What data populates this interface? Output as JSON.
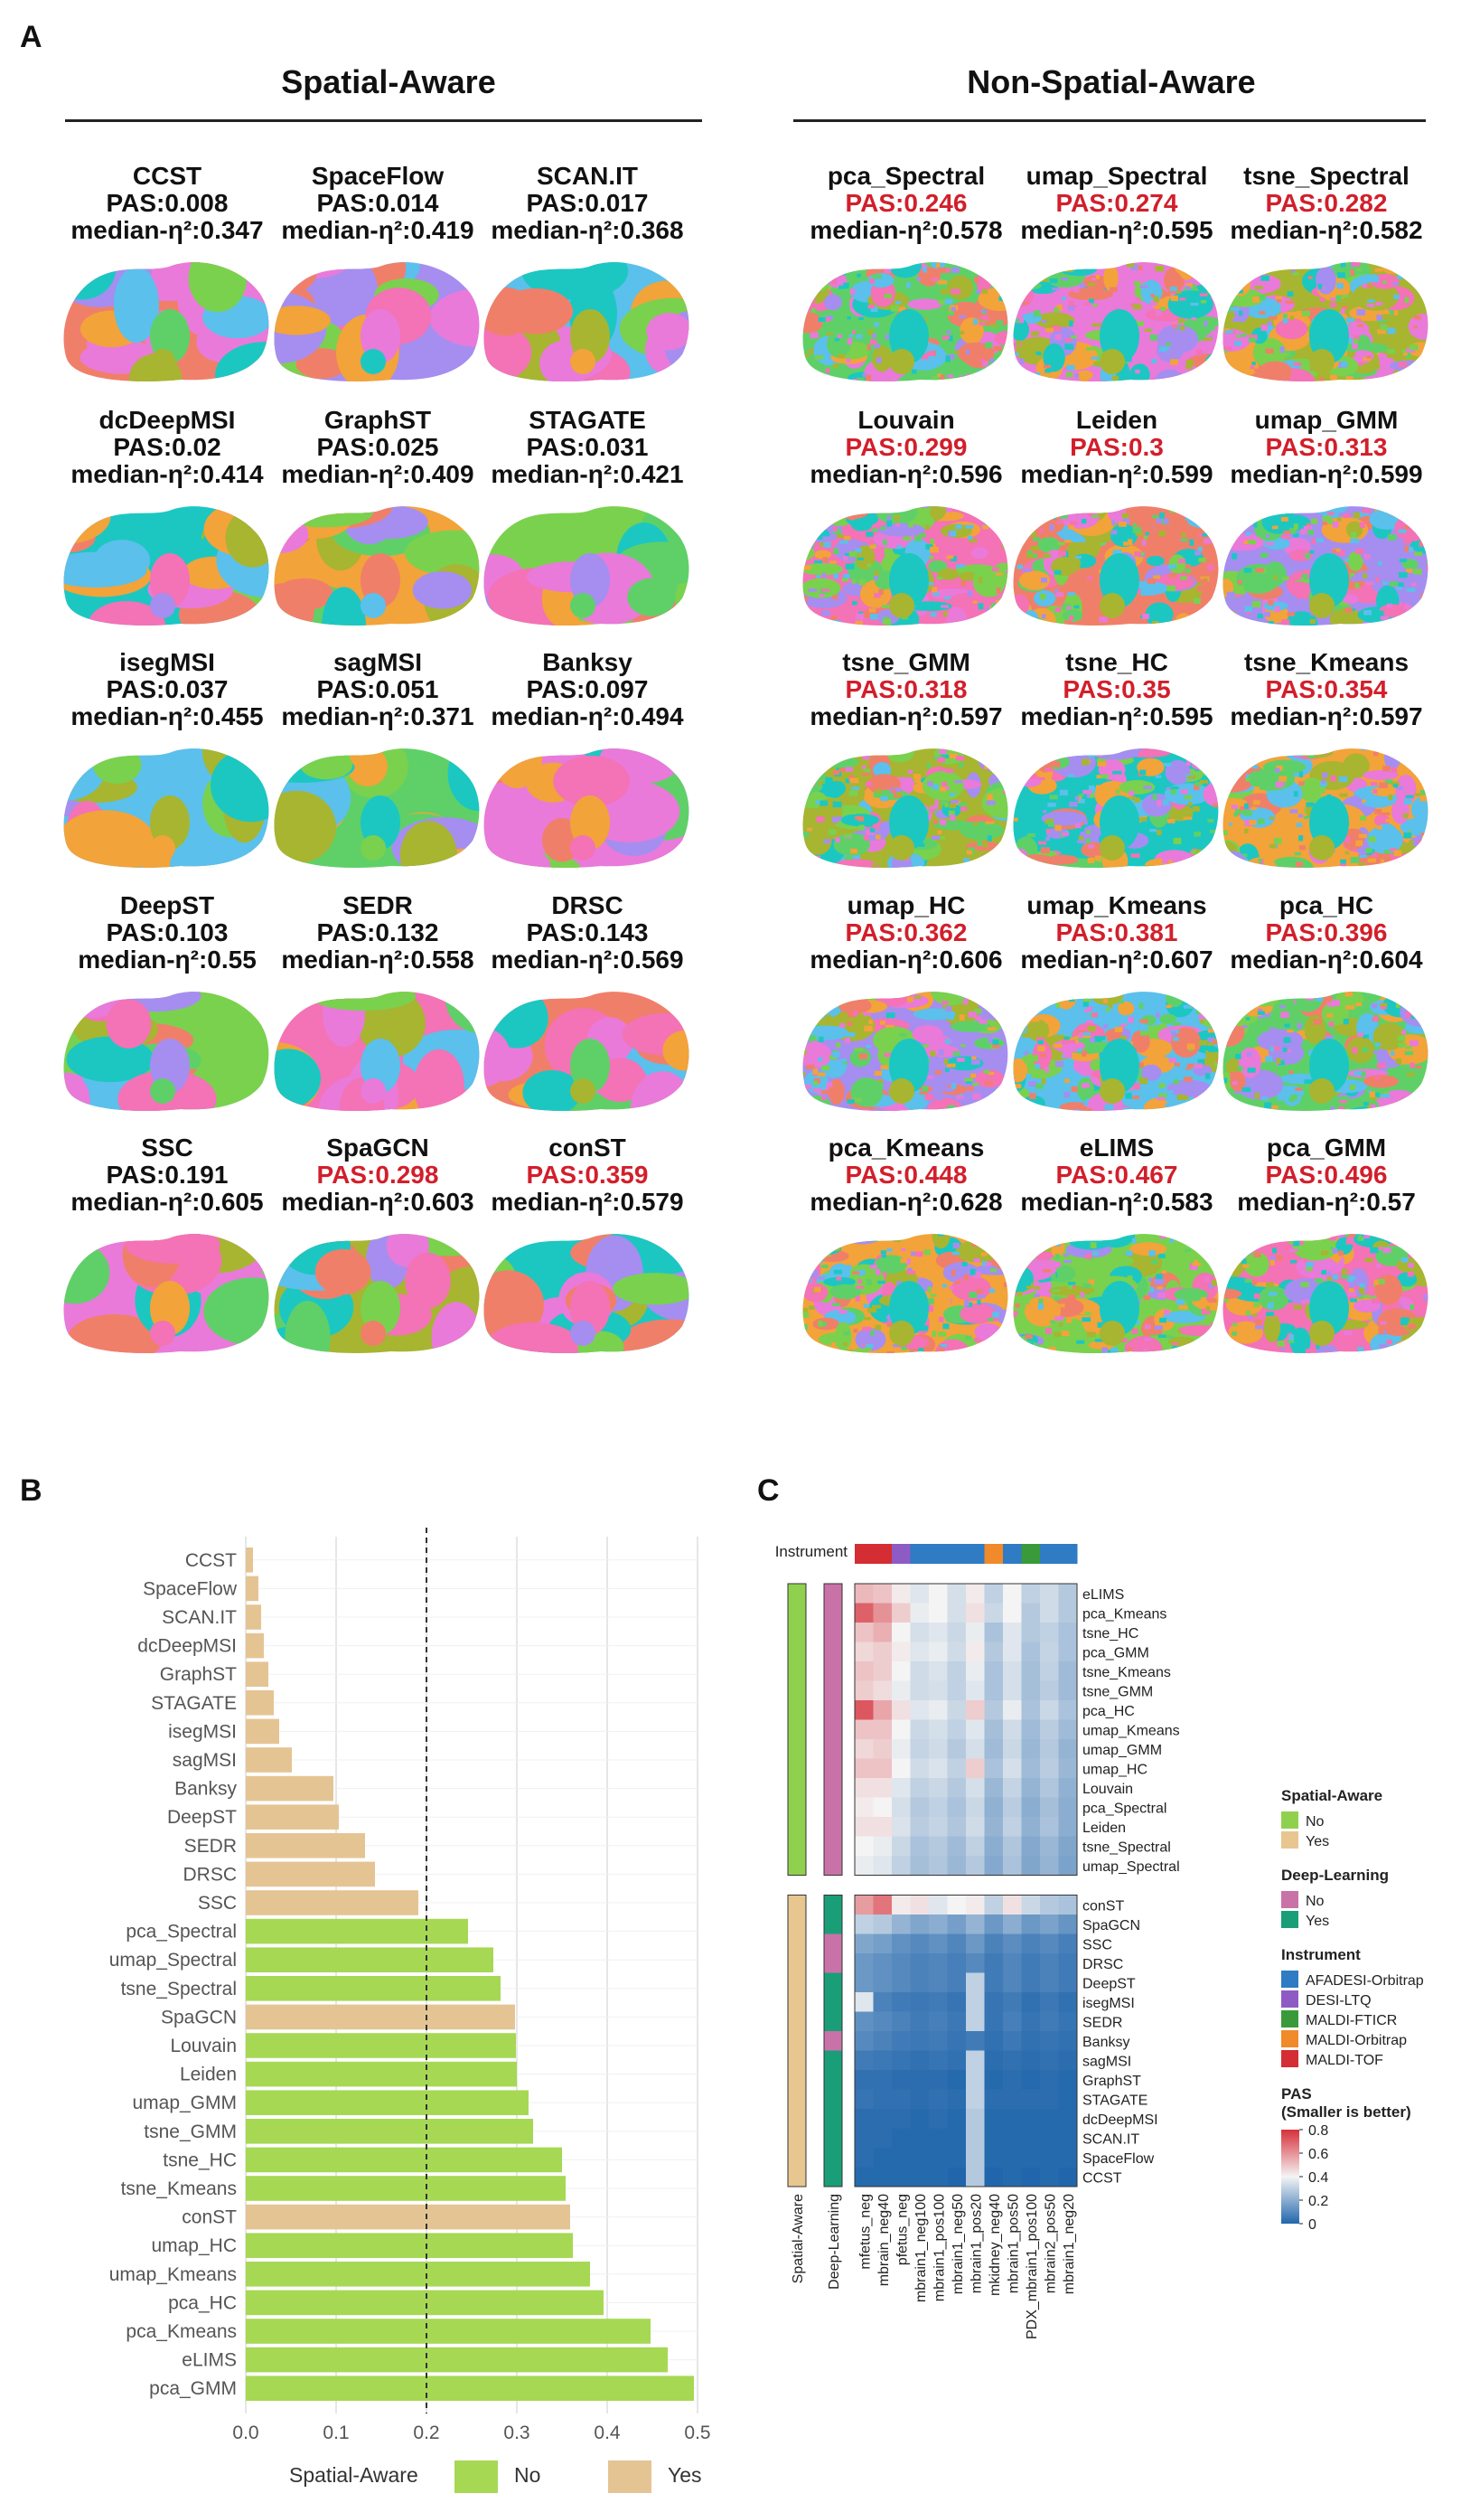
{
  "panels": {
    "a": "A",
    "b": "B",
    "c": "C"
  },
  "panel_a": {
    "groups": [
      {
        "title": "Spatial-Aware"
      },
      {
        "title": "Non-Spatial-Aware"
      }
    ],
    "pas_prefix": "PAS:",
    "eta_prefix": "median-η²:",
    "rows": [
      [
        {
          "name": "CCST",
          "pas": "0.008",
          "eta": "0.347",
          "highlight": false
        },
        {
          "name": "SpaceFlow",
          "pas": "0.014",
          "eta": "0.419",
          "highlight": false
        },
        {
          "name": "SCAN.IT",
          "pas": "0.017",
          "eta": "0.368",
          "highlight": false
        },
        {
          "name": "pca_Spectral",
          "pas": "0.246",
          "eta": "0.578",
          "highlight": true
        },
        {
          "name": "umap_Spectral",
          "pas": "0.274",
          "eta": "0.595",
          "highlight": true
        },
        {
          "name": "tsne_Spectral",
          "pas": "0.282",
          "eta": "0.582",
          "highlight": true
        }
      ],
      [
        {
          "name": "dcDeepMSI",
          "pas": "0.02",
          "eta": "0.414",
          "highlight": false
        },
        {
          "name": "GraphST",
          "pas": "0.025",
          "eta": "0.409",
          "highlight": false
        },
        {
          "name": "STAGATE",
          "pas": "0.031",
          "eta": "0.421",
          "highlight": false
        },
        {
          "name": "Louvain",
          "pas": "0.299",
          "eta": "0.596",
          "highlight": true
        },
        {
          "name": "Leiden",
          "pas": "0.3",
          "eta": "0.599",
          "highlight": true
        },
        {
          "name": "umap_GMM",
          "pas": "0.313",
          "eta": "0.599",
          "highlight": true
        }
      ],
      [
        {
          "name": "isegMSI",
          "pas": "0.037",
          "eta": "0.455",
          "highlight": false
        },
        {
          "name": "sagMSI",
          "pas": "0.051",
          "eta": "0.371",
          "highlight": false
        },
        {
          "name": "Banksy",
          "pas": "0.097",
          "eta": "0.494",
          "highlight": false
        },
        {
          "name": "tsne_GMM",
          "pas": "0.318",
          "eta": "0.597",
          "highlight": true
        },
        {
          "name": "tsne_HC",
          "pas": "0.35",
          "eta": "0.595",
          "highlight": true
        },
        {
          "name": "tsne_Kmeans",
          "pas": "0.354",
          "eta": "0.597",
          "highlight": true
        }
      ],
      [
        {
          "name": "DeepST",
          "pas": "0.103",
          "eta": "0.55",
          "highlight": false
        },
        {
          "name": "SEDR",
          "pas": "0.132",
          "eta": "0.558",
          "highlight": false
        },
        {
          "name": "DRSC",
          "pas": "0.143",
          "eta": "0.569",
          "highlight": false
        },
        {
          "name": "umap_HC",
          "pas": "0.362",
          "eta": "0.606",
          "highlight": true
        },
        {
          "name": "umap_Kmeans",
          "pas": "0.381",
          "eta": "0.607",
          "highlight": true
        },
        {
          "name": "pca_HC",
          "pas": "0.396",
          "eta": "0.604",
          "highlight": true
        }
      ],
      [
        {
          "name": "SSC",
          "pas": "0.191",
          "eta": "0.605",
          "highlight": false
        },
        {
          "name": "SpaGCN",
          "pas": "0.298",
          "eta": "0.603",
          "highlight": true
        },
        {
          "name": "conST",
          "pas": "0.359",
          "eta": "0.579",
          "highlight": true
        },
        {
          "name": "pca_Kmeans",
          "pas": "0.448",
          "eta": "0.628",
          "highlight": true
        },
        {
          "name": "eLIMS",
          "pas": "0.467",
          "eta": "0.583",
          "highlight": true
        },
        {
          "name": "pca_GMM",
          "pas": "0.496",
          "eta": "0.57",
          "highlight": true
        }
      ]
    ],
    "cluster_colors": [
      "#f07f6a",
      "#a58ef0",
      "#5bc0eb",
      "#5fd068",
      "#e97ad9",
      "#a7b531",
      "#1cc7c2",
      "#f2a33a",
      "#7ad14e",
      "#f472b6"
    ]
  },
  "chart_data": [
    {
      "type": "bar",
      "orientation": "horizontal",
      "categories": [
        "CCST",
        "SpaceFlow",
        "SCAN.IT",
        "dcDeepMSI",
        "GraphST",
        "STAGATE",
        "isegMSI",
        "sagMSI",
        "Banksy",
        "DeepST",
        "SEDR",
        "DRSC",
        "SSC",
        "pca_Spectral",
        "umap_Spectral",
        "tsne_Spectral",
        "SpaGCN",
        "Louvain",
        "Leiden",
        "umap_GMM",
        "tsne_GMM",
        "tsne_HC",
        "tsne_Kmeans",
        "conST",
        "umap_HC",
        "umap_Kmeans",
        "pca_HC",
        "pca_Kmeans",
        "eLIMS",
        "pca_GMM"
      ],
      "values": [
        0.008,
        0.014,
        0.017,
        0.02,
        0.025,
        0.031,
        0.037,
        0.051,
        0.097,
        0.103,
        0.132,
        0.143,
        0.191,
        0.246,
        0.274,
        0.282,
        0.298,
        0.299,
        0.3,
        0.313,
        0.318,
        0.35,
        0.354,
        0.359,
        0.362,
        0.381,
        0.396,
        0.448,
        0.467,
        0.496
      ],
      "spatial_aware": [
        "Yes",
        "Yes",
        "Yes",
        "Yes",
        "Yes",
        "Yes",
        "Yes",
        "Yes",
        "Yes",
        "Yes",
        "Yes",
        "Yes",
        "Yes",
        "No",
        "No",
        "No",
        "Yes",
        "No",
        "No",
        "No",
        "No",
        "No",
        "No",
        "Yes",
        "No",
        "No",
        "No",
        "No",
        "No",
        "No"
      ],
      "xlim": [
        0,
        0.5
      ],
      "xticks": [
        "0.0",
        "0.1",
        "0.2",
        "0.3",
        "0.4",
        "0.5"
      ],
      "reference_line": 0.2,
      "legend": {
        "title": "Spatial-Aware",
        "items": [
          {
            "label": "No",
            "color": "#a6d854"
          },
          {
            "label": "Yes",
            "color": "#e5c494"
          }
        ],
        "placement": "bottom"
      },
      "grid": true
    },
    {
      "type": "heatmap",
      "rows": [
        "eLIMS",
        "pca_Kmeans",
        "tsne_HC",
        "pca_GMM",
        "tsne_Kmeans",
        "tsne_GMM",
        "pca_HC",
        "umap_Kmeans",
        "umap_GMM",
        "umap_HC",
        "Louvain",
        "pca_Spectral",
        "Leiden",
        "tsne_Spectral",
        "umap_Spectral",
        "conST",
        "SpaGCN",
        "SSC",
        "DRSC",
        "DeepST",
        "isegMSI",
        "SEDR",
        "Banksy",
        "sagMSI",
        "GraphST",
        "STAGATE",
        "dcDeepMSI",
        "SCAN.IT",
        "SpaceFlow",
        "CCST"
      ],
      "columns": [
        "mfetus_neg",
        "mbrain_neg40",
        "pfetus_neg",
        "mbrain1_neg100",
        "mbrain1_pos100",
        "mbrain1_neg50",
        "mbrain1_pos20",
        "mkidney_neg40",
        "mbrain1_pos50",
        "PDX_mbrain1_pos100",
        "mbrain2_pos50",
        "mbrain1_neg20"
      ],
      "instrument_row_label": "Instrument",
      "column_instruments": [
        "MALDI-TOF",
        "MALDI-TOF",
        "DESI-LTQ",
        "AFADESI-Orbitrap",
        "AFADESI-Orbitrap",
        "AFADESI-Orbitrap",
        "AFADESI-Orbitrap",
        "MALDI-Orbitrap",
        "AFADESI-Orbitrap",
        "MALDI-FTICR",
        "AFADESI-Orbitrap",
        "AFADESI-Orbitrap"
      ],
      "row_annotation_labels": [
        "Spatial-Aware",
        "Deep-Learning"
      ],
      "spatial_aware": [
        "No",
        "No",
        "No",
        "No",
        "No",
        "No",
        "No",
        "No",
        "No",
        "No",
        "No",
        "No",
        "No",
        "No",
        "No",
        "Yes",
        "Yes",
        "Yes",
        "Yes",
        "Yes",
        "Yes",
        "Yes",
        "Yes",
        "Yes",
        "Yes",
        "Yes",
        "Yes",
        "Yes",
        "Yes",
        "Yes"
      ],
      "deep_learning": [
        "No",
        "No",
        "No",
        "No",
        "No",
        "No",
        "No",
        "No",
        "No",
        "No",
        "No",
        "No",
        "No",
        "No",
        "No",
        "Yes",
        "Yes",
        "No",
        "No",
        "Yes",
        "Yes",
        "Yes",
        "No",
        "Yes",
        "Yes",
        "Yes",
        "Yes",
        "Yes",
        "Yes",
        "Yes"
      ],
      "values": [
        [
          0.52,
          0.5,
          0.42,
          0.36,
          0.4,
          0.34,
          0.42,
          0.3,
          0.4,
          0.3,
          0.33,
          0.28
        ],
        [
          0.7,
          0.6,
          0.48,
          0.38,
          0.4,
          0.34,
          0.44,
          0.32,
          0.4,
          0.28,
          0.33,
          0.28
        ],
        [
          0.5,
          0.54,
          0.4,
          0.34,
          0.36,
          0.32,
          0.38,
          0.26,
          0.36,
          0.28,
          0.3,
          0.26
        ],
        [
          0.46,
          0.48,
          0.42,
          0.36,
          0.38,
          0.33,
          0.42,
          0.28,
          0.36,
          0.26,
          0.31,
          0.26
        ],
        [
          0.5,
          0.48,
          0.4,
          0.33,
          0.35,
          0.3,
          0.38,
          0.26,
          0.34,
          0.25,
          0.3,
          0.24
        ],
        [
          0.48,
          0.45,
          0.38,
          0.33,
          0.34,
          0.3,
          0.36,
          0.26,
          0.34,
          0.25,
          0.29,
          0.24
        ],
        [
          0.72,
          0.56,
          0.44,
          0.36,
          0.38,
          0.32,
          0.48,
          0.28,
          0.38,
          0.26,
          0.32,
          0.26
        ],
        [
          0.5,
          0.5,
          0.4,
          0.32,
          0.34,
          0.3,
          0.36,
          0.25,
          0.33,
          0.24,
          0.29,
          0.24
        ],
        [
          0.46,
          0.48,
          0.38,
          0.31,
          0.33,
          0.28,
          0.34,
          0.24,
          0.32,
          0.23,
          0.28,
          0.22
        ],
        [
          0.5,
          0.5,
          0.4,
          0.33,
          0.35,
          0.3,
          0.48,
          0.26,
          0.34,
          0.24,
          0.29,
          0.23
        ],
        [
          0.44,
          0.44,
          0.36,
          0.3,
          0.32,
          0.28,
          0.34,
          0.23,
          0.31,
          0.22,
          0.27,
          0.21
        ],
        [
          0.42,
          0.4,
          0.34,
          0.28,
          0.3,
          0.26,
          0.32,
          0.21,
          0.29,
          0.2,
          0.25,
          0.2
        ],
        [
          0.44,
          0.44,
          0.35,
          0.29,
          0.31,
          0.27,
          0.33,
          0.22,
          0.3,
          0.21,
          0.26,
          0.2
        ],
        [
          0.4,
          0.38,
          0.32,
          0.26,
          0.28,
          0.24,
          0.3,
          0.2,
          0.27,
          0.19,
          0.23,
          0.18
        ],
        [
          0.38,
          0.36,
          0.3,
          0.25,
          0.27,
          0.23,
          0.28,
          0.19,
          0.26,
          0.18,
          0.22,
          0.17
        ],
        [
          0.58,
          0.66,
          0.42,
          0.44,
          0.36,
          0.4,
          0.42,
          0.3,
          0.44,
          0.32,
          0.28,
          0.26
        ],
        [
          0.3,
          0.28,
          0.22,
          0.18,
          0.2,
          0.16,
          0.22,
          0.14,
          0.2,
          0.14,
          0.17,
          0.13
        ],
        [
          0.18,
          0.16,
          0.12,
          0.1,
          0.12,
          0.09,
          0.14,
          0.08,
          0.11,
          0.08,
          0.1,
          0.07
        ],
        [
          0.14,
          0.12,
          0.1,
          0.08,
          0.09,
          0.07,
          0.1,
          0.06,
          0.09,
          0.06,
          0.08,
          0.06
        ],
        [
          0.14,
          0.12,
          0.1,
          0.08,
          0.09,
          0.07,
          0.3,
          0.06,
          0.09,
          0.06,
          0.08,
          0.06
        ],
        [
          0.36,
          0.08,
          0.06,
          0.05,
          0.06,
          0.04,
          0.3,
          0.04,
          0.06,
          0.03,
          0.05,
          0.03
        ],
        [
          0.12,
          0.1,
          0.08,
          0.06,
          0.07,
          0.05,
          0.3,
          0.04,
          0.07,
          0.04,
          0.06,
          0.04
        ],
        [
          0.1,
          0.08,
          0.06,
          0.05,
          0.06,
          0.04,
          0.06,
          0.03,
          0.05,
          0.03,
          0.04,
          0.03
        ],
        [
          0.06,
          0.05,
          0.04,
          0.03,
          0.04,
          0.03,
          0.3,
          0.02,
          0.03,
          0.02,
          0.03,
          0.02
        ],
        [
          0.03,
          0.03,
          0.02,
          0.02,
          0.02,
          0.01,
          0.3,
          0.01,
          0.02,
          0.01,
          0.02,
          0.01
        ],
        [
          0.04,
          0.03,
          0.03,
          0.02,
          0.03,
          0.02,
          0.3,
          0.02,
          0.02,
          0.02,
          0.02,
          0.01
        ],
        [
          0.02,
          0.02,
          0.02,
          0.01,
          0.02,
          0.01,
          0.28,
          0.01,
          0.01,
          0.01,
          0.01,
          0.01
        ],
        [
          0.02,
          0.02,
          0.01,
          0.01,
          0.01,
          0.01,
          0.28,
          0.01,
          0.01,
          0.01,
          0.01,
          0.01
        ],
        [
          0.02,
          0.01,
          0.01,
          0.01,
          0.01,
          0.01,
          0.28,
          0.01,
          0.01,
          0.01,
          0.01,
          0.01
        ],
        [
          0.01,
          0.01,
          0.01,
          0.01,
          0.01,
          0.0,
          0.28,
          0.0,
          0.01,
          0.0,
          0.01,
          0.0
        ]
      ],
      "legends": [
        {
          "title": "Spatial-Aware",
          "items": [
            {
              "label": "No",
              "color": "#8fd14f"
            },
            {
              "label": "Yes",
              "color": "#e8c690"
            }
          ]
        },
        {
          "title": "Deep-Learning",
          "items": [
            {
              "label": "No",
              "color": "#c972a8"
            },
            {
              "label": "Yes",
              "color": "#1a9e77"
            }
          ]
        },
        {
          "title": "Instrument",
          "items": [
            {
              "label": "AFADESI-Orbitrap",
              "color": "#2f7bc4"
            },
            {
              "label": "DESI-LTQ",
              "color": "#8e5bc4"
            },
            {
              "label": "MALDI-FTICR",
              "color": "#3a9a3a"
            },
            {
              "label": "MALDI-Orbitrap",
              "color": "#f08a2a"
            },
            {
              "label": "MALDI-TOF",
              "color": "#d42d33"
            }
          ]
        }
      ],
      "colorbar": {
        "title_line1": "PAS",
        "title_line2": "(Smaller is better)",
        "ticks": [
          "0.8",
          "0.6",
          "0.4",
          "0.2",
          "0"
        ],
        "range": [
          0,
          0.8
        ],
        "colors": [
          "#2166ac",
          "#f4f4f4",
          "#d6303a"
        ]
      }
    }
  ]
}
